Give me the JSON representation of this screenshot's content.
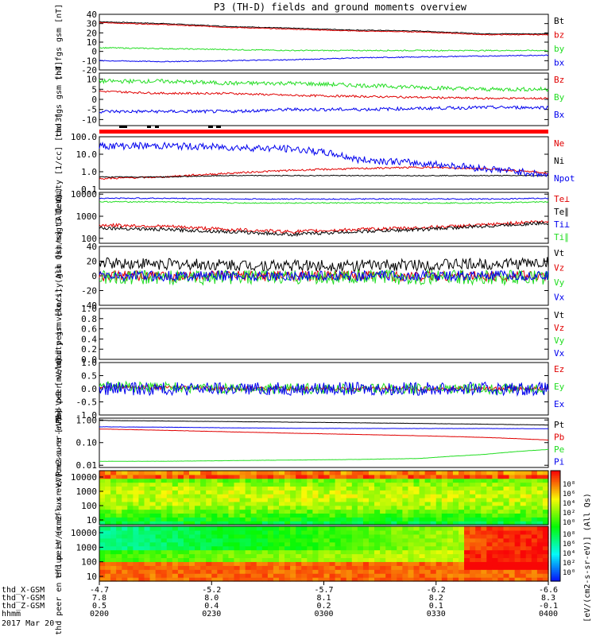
{
  "title": "P3 (TH-D) fields and ground moments overview",
  "colors": {
    "black": "#000000",
    "red": "#e00000",
    "green": "#22dd22",
    "blue": "#0000ee",
    "dkgreen": "#009900"
  },
  "chart_data": {
    "type": "line",
    "xaxis": {
      "rows": [
        {
          "label": "thd_X-GSM",
          "values": [
            "-4.7",
            "-5.2",
            "-5.7",
            "-6.2",
            "-6.6"
          ]
        },
        {
          "label": "thd_Y-GSM",
          "values": [
            "7.8",
            "8.0",
            "8.1",
            "8.2",
            "8.3"
          ]
        },
        {
          "label": "thd_Z-GSM",
          "values": [
            "0.5",
            "0.4",
            "0.2",
            "0.1",
            "-0.1"
          ]
        },
        {
          "label": "hhmm",
          "values": [
            "0200",
            "0230",
            "0300",
            "0330",
            "0400"
          ]
        }
      ],
      "date": "2017 Mar 20",
      "time_range": [
        "02:00",
        "04:00"
      ]
    },
    "panels": [
      {
        "id": "fgs_gsm",
        "ylabel": "thd fgs gsm [nT]",
        "yticks": [
          "40",
          "30",
          "20",
          "10",
          "0",
          "-10",
          "-20"
        ],
        "ylim": [
          -20,
          40
        ],
        "series": [
          {
            "name": "Bt",
            "color": "black",
            "values": [
              32,
              30,
              27,
              25,
              23,
              22,
              19,
              19
            ],
            "noise": 0.4
          },
          {
            "name": "bz",
            "color": "red",
            "values": [
              31,
              29,
              26,
              24,
              22,
              21,
              18,
              18
            ],
            "noise": 0.4
          },
          {
            "name": "by",
            "color": "green",
            "values": [
              4,
              3,
              2,
              1,
              1,
              1,
              1,
              1
            ],
            "noise": 0.6
          },
          {
            "name": "bx",
            "color": "blue",
            "values": [
              -10,
              -11,
              -10,
              -9,
              -7,
              -6,
              -5,
              -4
            ],
            "noise": 0.5
          }
        ]
      },
      {
        "id": "fgs_gsm2",
        "ylabel": "thd fgs gsm [nT]",
        "yticks": [
          "10",
          "5",
          "0",
          "-5",
          "-10"
        ],
        "ylim": [
          -13,
          13
        ],
        "series": [
          {
            "name": "Bz",
            "color": "red",
            "values": [
              4,
              3,
              3,
              2,
              1.5,
              1,
              0.5,
              0.5
            ],
            "noise": 0.5
          },
          {
            "name": "By",
            "color": "green",
            "values": [
              9,
              9,
              8,
              8,
              7,
              6,
              5,
              5
            ],
            "noise": 1.0
          },
          {
            "name": "Bx",
            "color": "blue",
            "values": [
              -6,
              -6,
              -6,
              -5,
              -5,
              -4.5,
              -4,
              -4
            ],
            "noise": 0.8
          }
        ]
      },
      {
        "id": "density",
        "ylabel": "Density [1/cc] [cm-3]",
        "yticks": [
          "100.0",
          "10.0",
          "1.0",
          "0.1"
        ],
        "log": true,
        "ylim": [
          0.1,
          100
        ],
        "series": [
          {
            "name": "Ne",
            "color": "red",
            "values": [
              0.4,
              0.5,
              0.8,
              1.2,
              1.5,
              1.8,
              1.5,
              0.8
            ],
            "noise": 0.1
          },
          {
            "name": "Ni",
            "color": "black",
            "values": [
              0.5,
              0.5,
              0.6,
              0.6,
              0.6,
              0.6,
              0.6,
              0.6
            ],
            "noise": 0.05
          },
          {
            "name": "Npot",
            "color": "blue",
            "values": [
              30,
              30,
              25,
              20,
              5,
              3,
              1.5,
              0.6
            ],
            "noise": 0.4
          }
        ]
      },
      {
        "id": "temp",
        "ylabel": "magt3 [eV]",
        "yticks": [
          "10000",
          "1000",
          "100"
        ],
        "log": true,
        "ylim": [
          60,
          12000
        ],
        "series": [
          {
            "name": "Te⊥",
            "color": "red",
            "values": [
              400,
              350,
              250,
              200,
              250,
              300,
              400,
              600
            ],
            "noise": 0.15
          },
          {
            "name": "Te∥",
            "color": "black",
            "values": [
              300,
              250,
              200,
              150,
              200,
              250,
              350,
              500
            ],
            "noise": 0.15
          },
          {
            "name": "Ti⊥",
            "color": "blue",
            "values": [
              6500,
              6500,
              6000,
              6000,
              6000,
              6000,
              6000,
              6500
            ],
            "noise": 0.05
          },
          {
            "name": "Ti∥",
            "color": "green",
            "values": [
              4500,
              4500,
              4000,
              4000,
              4000,
              4000,
              4000,
              4500
            ],
            "noise": 0.05
          }
        ]
      },
      {
        "id": "peir_vel",
        "ylabel": "thd peir velocity gsm [km/s] (All Qs)",
        "yticks": [
          "40",
          "20",
          "0",
          "-20",
          "-40"
        ],
        "ylim": [
          -40,
          40
        ],
        "series": [
          {
            "name": "Vt",
            "color": "black",
            "values": [
              18,
              16,
              15,
              14,
              14,
              15,
              16,
              18
            ],
            "noise": 8
          },
          {
            "name": "Vz",
            "color": "red",
            "values": [
              0,
              0,
              0,
              0,
              0,
              0,
              0,
              0
            ],
            "noise": 7
          },
          {
            "name": "Vy",
            "color": "green",
            "values": [
              -3,
              -2,
              -2,
              -2,
              -2,
              -2,
              -2,
              -2
            ],
            "noise": 10
          },
          {
            "name": "Vx",
            "color": "blue",
            "values": [
              0,
              0,
              0,
              0,
              0,
              0,
              0,
              0
            ],
            "noise": 7
          }
        ]
      },
      {
        "id": "peer_vel",
        "ylabel": "thd peer velocity gsm [km/s] (All Qs)",
        "yticks": [
          "1.0",
          "0.8",
          "0.6",
          "0.4",
          "0.2",
          "0.0"
        ],
        "ylim": [
          0,
          1
        ],
        "series": [
          {
            "name": "Vt",
            "color": "black",
            "values": [],
            "noise": 0
          },
          {
            "name": "Vz",
            "color": "red",
            "values": [],
            "noise": 0
          },
          {
            "name": "Vy",
            "color": "green",
            "values": [],
            "noise": 0
          },
          {
            "name": "Vx",
            "color": "blue",
            "values": [],
            "noise": 0
          }
        ]
      },
      {
        "id": "efield",
        "ylabel": "E=-VxB [mV/m]",
        "yticks": [
          "1.0",
          "0.5",
          "0.0",
          "-0.5",
          "-1.0"
        ],
        "ylim": [
          -1,
          1
        ],
        "series": [
          {
            "name": "Ez",
            "color": "red",
            "values": [
              0.1,
              0.05,
              0,
              0,
              0,
              0,
              0,
              0
            ],
            "noise": 0.08
          },
          {
            "name": "Ey",
            "color": "green",
            "values": [
              0.1,
              0.05,
              0,
              0,
              0,
              0,
              0,
              0
            ],
            "noise": 0.2
          },
          {
            "name": "Ex",
            "color": "blue",
            "values": [
              0,
              0,
              0,
              0,
              0,
              0,
              0,
              0
            ],
            "noise": 0.25
          }
        ]
      },
      {
        "id": "pressure",
        "ylabel": "Pressure [nPa]",
        "yticks": [
          "1.00",
          "0.10",
          "0.01"
        ],
        "log": true,
        "ylim": [
          0.008,
          1.2
        ],
        "series": [
          {
            "name": "Pt",
            "color": "black",
            "values": [
              0.95,
              0.9,
              0.85,
              0.8,
              0.75,
              0.7,
              0.65,
              0.6
            ],
            "noise": 0.01
          },
          {
            "name": "Pb",
            "color": "red",
            "values": [
              0.4,
              0.35,
              0.3,
              0.26,
              0.23,
              0.2,
              0.17,
              0.13
            ],
            "noise": 0.01
          },
          {
            "name": "Pe",
            "color": "green",
            "values": [
              0.015,
              0.015,
              0.016,
              0.017,
              0.018,
              0.02,
              0.03,
              0.05
            ],
            "noise": 0.01
          },
          {
            "name": "Pi",
            "color": "blue",
            "values": [
              0.5,
              0.48,
              0.45,
              0.43,
              0.42,
              0.42,
              0.42,
              0.41
            ],
            "noise": 0.01
          }
        ]
      }
    ],
    "spectrograms": [
      {
        "id": "peir_en",
        "ylabel": "thd peir en eflux eV/(cm2-s-sr-eV)",
        "yticks": [
          "10000",
          "1000",
          "100",
          "10"
        ]
      },
      {
        "id": "peer_en",
        "ylabel": "thd peer en eflux eV/(cm2-s-sr-eV)",
        "yticks": [
          "10000",
          "1000",
          "100",
          "10"
        ]
      }
    ],
    "colorbar": {
      "label": "[eV/(cm2-s-sr-eV)] (All Qs)",
      "ticks_top": [
        "10⁸",
        "10⁶",
        "10⁴",
        "10²",
        "10⁰"
      ],
      "ticks_bottom": [
        "10⁸",
        "10⁶",
        "10⁴",
        "10²",
        "10⁰"
      ]
    }
  }
}
